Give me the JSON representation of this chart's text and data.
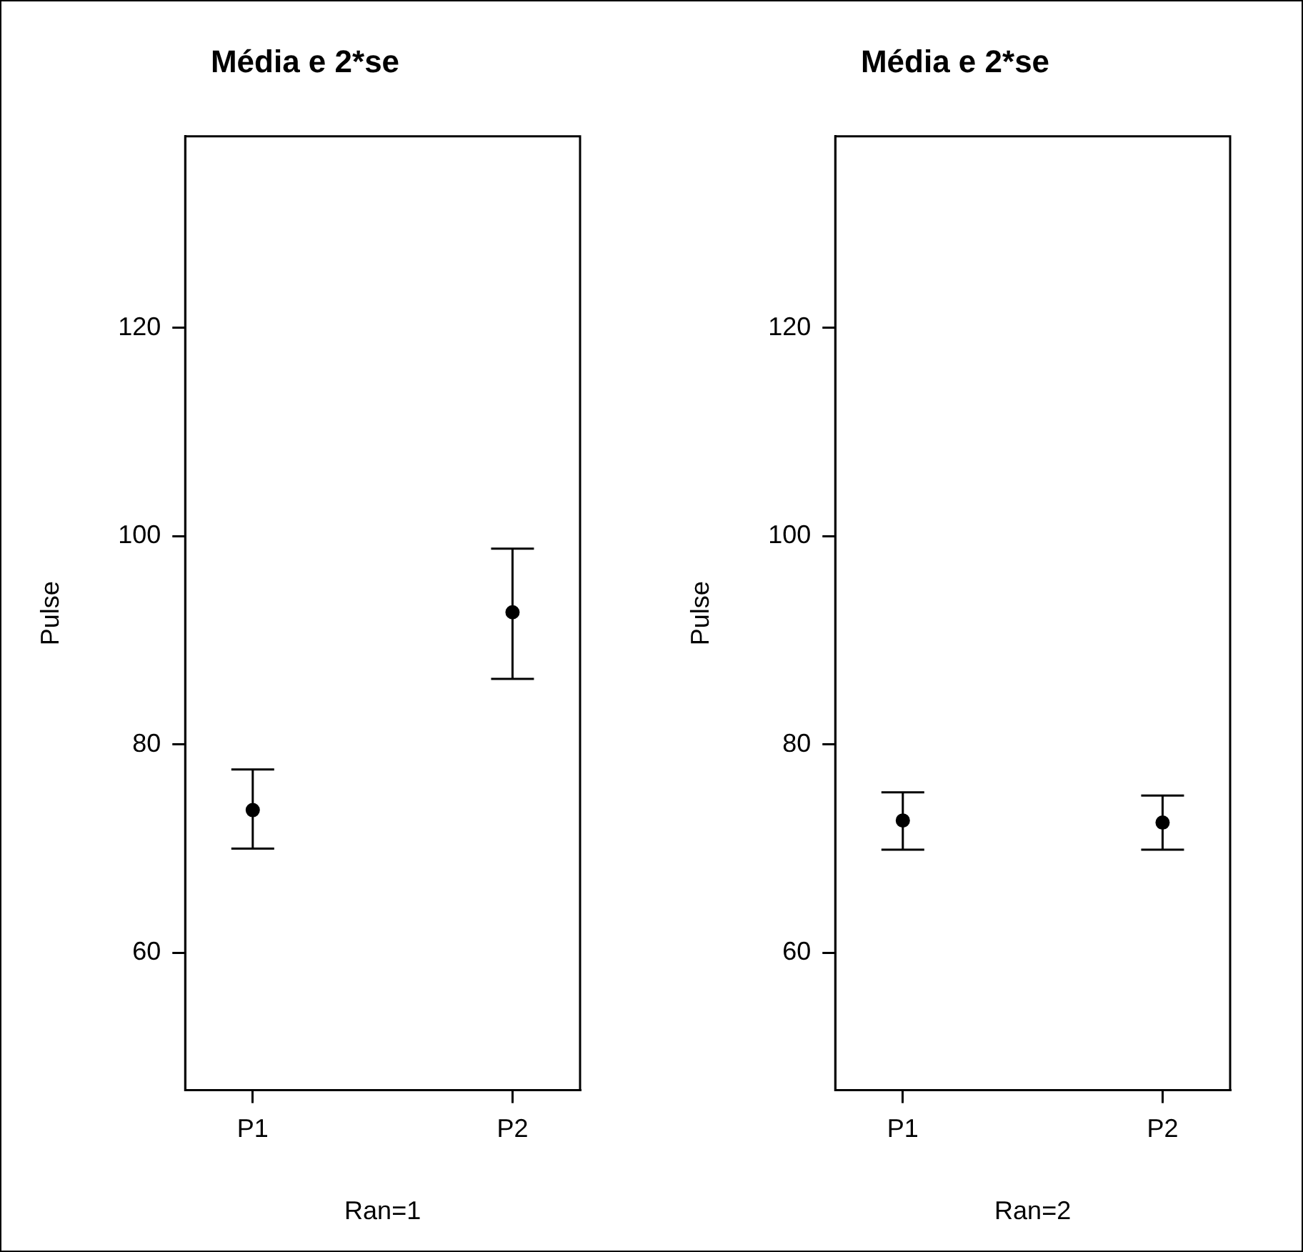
{
  "chart_data": [
    {
      "type": "scatter",
      "title": "Média e 2*se",
      "xlabel": "Ran=1",
      "ylabel": "Pulse",
      "categories": [
        "P1",
        "P2"
      ],
      "values": [
        73.7,
        92.7
      ],
      "errors": [
        [
          70.0,
          77.6
        ],
        [
          86.3,
          98.8
        ]
      ],
      "color": "#000000",
      "marker": "circle",
      "ylim": [
        46.8,
        138.4
      ],
      "yticks": [
        60,
        80,
        100,
        120
      ],
      "grid": false,
      "legend": false
    },
    {
      "type": "scatter",
      "title": "Média e 2*se",
      "xlabel": "Ran=2",
      "ylabel": "Pulse",
      "categories": [
        "P1",
        "P2"
      ],
      "values": [
        72.7,
        72.5
      ],
      "errors": [
        [
          69.9,
          75.4
        ],
        [
          69.9,
          75.1
        ]
      ],
      "color": "#000000",
      "marker": "circle",
      "ylim": [
        46.8,
        138.4
      ],
      "yticks": [
        60,
        80,
        100,
        120
      ],
      "grid": false,
      "legend": false
    }
  ]
}
